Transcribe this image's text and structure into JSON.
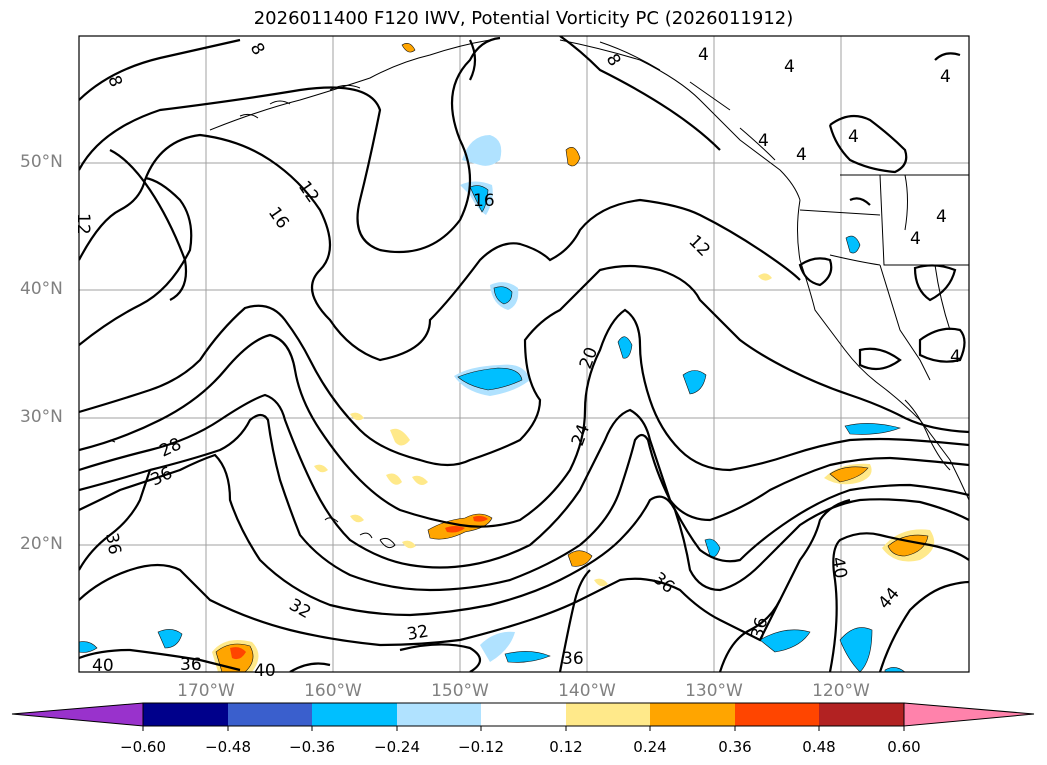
{
  "title": "2026011400 F120 IWV, Potential Vorticity PC (2026011912)",
  "lat_labels": [
    "50°N",
    "40°N",
    "30°N",
    "20°N"
  ],
  "lon_labels": [
    "170°W",
    "160°W",
    "150°W",
    "140°W",
    "130°W",
    "120°W"
  ],
  "contour_labels": [
    "8",
    "8",
    "8",
    "12",
    "12",
    "12",
    "16",
    "16",
    "20",
    "24",
    "28",
    "32",
    "32",
    "36",
    "36",
    "36",
    "36",
    "36",
    "36",
    "40",
    "40",
    "40",
    "44",
    "4",
    "4",
    "4",
    "4",
    "4",
    "4",
    "4",
    "4",
    "4"
  ],
  "colorbar": {
    "ticks": [
      "−0.60",
      "−0.48",
      "−0.36",
      "−0.24",
      "−0.12",
      "0.12",
      "0.24",
      "0.36",
      "0.48",
      "0.60"
    ],
    "colors": [
      "#9932CC",
      "#00008B",
      "#3A5FCD",
      "#00BFFF",
      "#B0E2FF",
      "#FFFFFF",
      "#FFE98A",
      "#FFA500",
      "#FF4500",
      "#B22222",
      "#FF82AB"
    ]
  }
}
